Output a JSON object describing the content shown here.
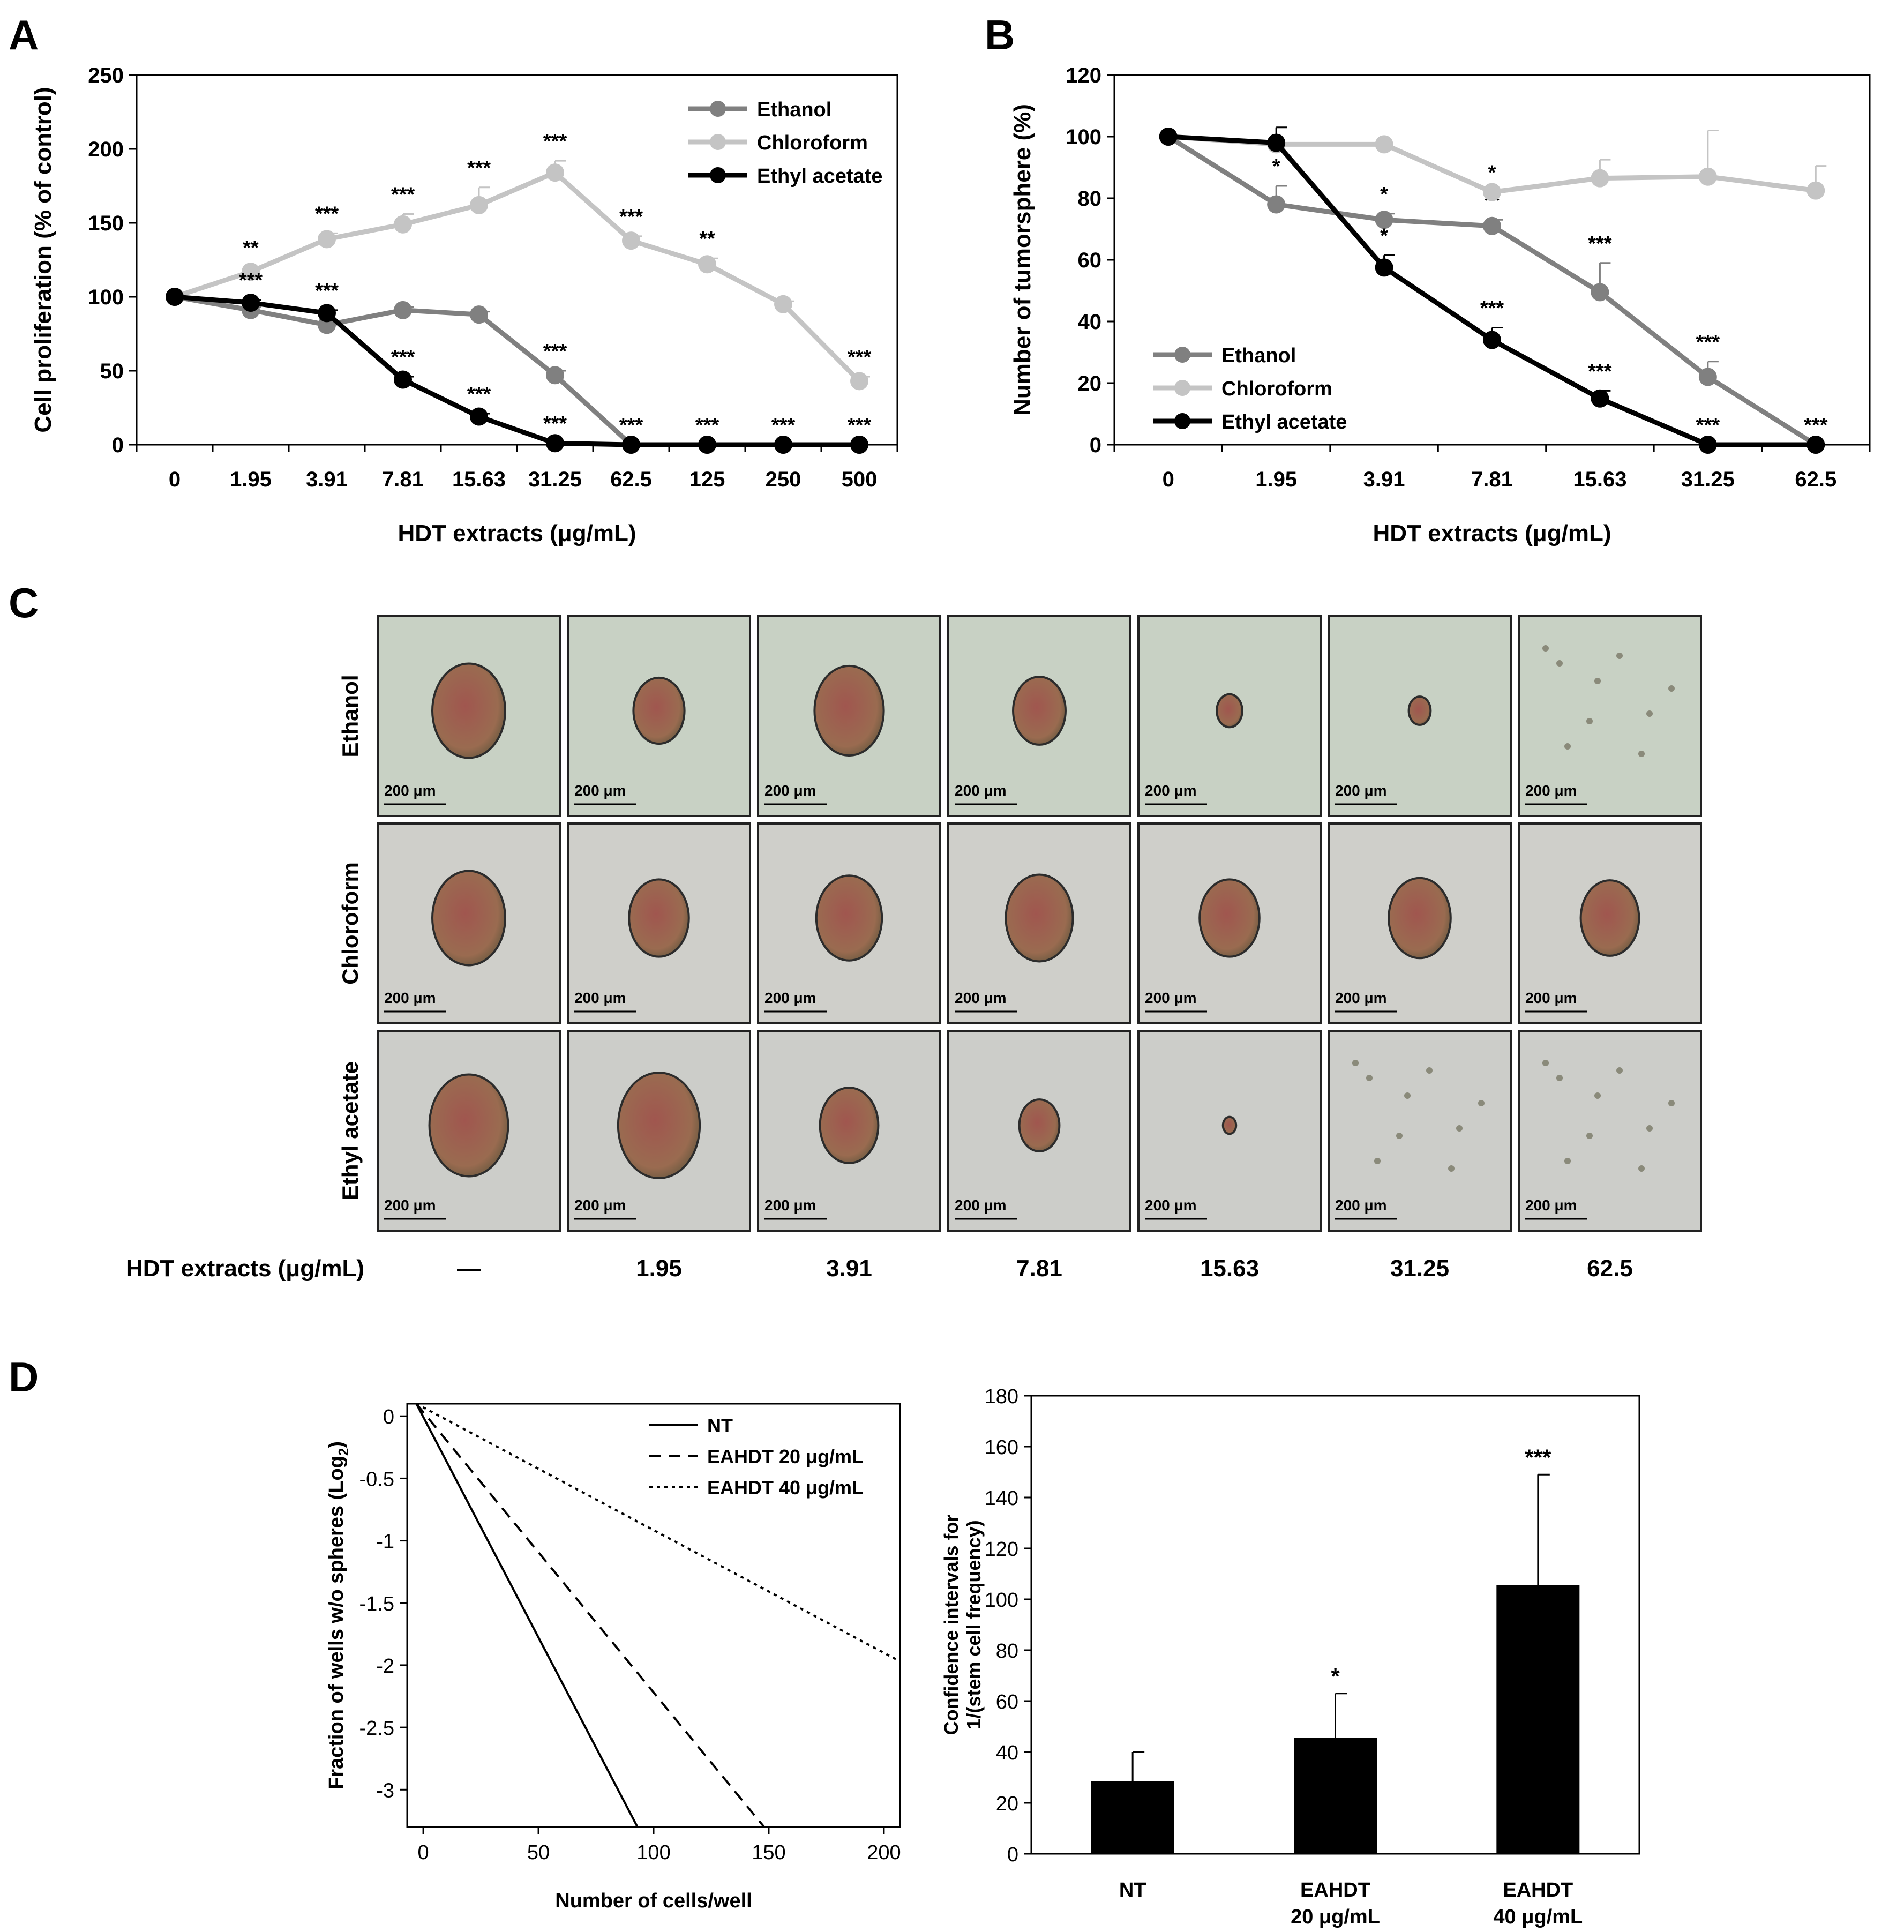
{
  "panels": {
    "a": "A",
    "b": "B",
    "c": "C",
    "d": "D"
  },
  "chart_data": [
    {
      "id": "A",
      "type": "line",
      "categories": [
        "0",
        "1.95",
        "3.91",
        "7.81",
        "15.63",
        "31.25",
        "62.5",
        "125",
        "250",
        "500"
      ],
      "xlabel": "HDT extracts (μg/mL)",
      "ylabel": "Cell proliferation (% of control)",
      "ylim": [
        0,
        250
      ],
      "yticks": [
        0,
        50,
        100,
        150,
        200,
        250
      ],
      "legend_position": "top-right",
      "series": [
        {
          "name": "Ethanol",
          "color": "#808080",
          "values": [
            100,
            91,
            81,
            91,
            88,
            47,
            0,
            0,
            0,
            0
          ],
          "errors": [
            0,
            2,
            2,
            2,
            2,
            3,
            0,
            0,
            0,
            0
          ],
          "labels": [
            "",
            "",
            "",
            "",
            "",
            "***",
            "***",
            "",
            "",
            ""
          ],
          "label_side": "above"
        },
        {
          "name": "Chloroform",
          "color": "#c4c4c4",
          "values": [
            100,
            117,
            139,
            149,
            162,
            184,
            138,
            122,
            95,
            43
          ],
          "errors": [
            0,
            3,
            4,
            7,
            12,
            8,
            3,
            4,
            2,
            3
          ],
          "labels": [
            "",
            "**",
            "***",
            "***",
            "***",
            "***",
            "***",
            "**",
            "",
            "***"
          ],
          "label_side": "above"
        },
        {
          "name": "Ethyl acetate",
          "color": "#000000",
          "values": [
            100,
            96,
            89,
            44,
            19,
            1,
            0,
            0,
            0,
            0
          ],
          "errors": [
            0,
            2,
            2,
            2,
            2,
            0,
            0,
            0,
            0,
            0
          ],
          "labels": [
            "",
            "***",
            "***",
            "***",
            "***",
            "***",
            "",
            "***",
            "***",
            "***"
          ],
          "label_side": "above"
        }
      ]
    },
    {
      "id": "B",
      "type": "line",
      "categories": [
        "0",
        "1.95",
        "3.91",
        "7.81",
        "15.63",
        "31.25",
        "62.5"
      ],
      "xlabel": "HDT extracts (μg/mL)",
      "ylabel": "Number of tumorsphere (%)",
      "ylim": [
        0,
        120
      ],
      "yticks": [
        0,
        20,
        40,
        60,
        80,
        100,
        120
      ],
      "legend_position": "bottom-left",
      "series": [
        {
          "name": "Ethanol",
          "color": "#808080",
          "values": [
            100,
            78,
            73,
            71,
            49.5,
            22,
            0
          ],
          "errors": [
            0,
            6,
            2,
            2,
            9.5,
            5,
            0
          ],
          "labels": [
            "",
            "*",
            "*",
            "**",
            "***",
            "***",
            ""
          ]
        },
        {
          "name": "Chloroform",
          "color": "#c4c4c4",
          "values": [
            100,
            97.5,
            97.5,
            82,
            86.5,
            87,
            82.5
          ],
          "errors": [
            0,
            0,
            0,
            0,
            6,
            15,
            8
          ],
          "labels": [
            "",
            "",
            "",
            "*",
            "",
            "",
            ""
          ]
        },
        {
          "name": "Ethyl acetate",
          "color": "#000000",
          "values": [
            100,
            98,
            57.5,
            34,
            15,
            0,
            0
          ],
          "errors": [
            0,
            5,
            4,
            4,
            2.5,
            0,
            0
          ],
          "labels": [
            "",
            "",
            "*",
            "***",
            "***",
            "***",
            "***"
          ]
        }
      ]
    },
    {
      "id": "D1",
      "type": "line",
      "xlabel": "Number of cells/well",
      "ylabel": "Fraction of wells w/o spheres (Log",
      "ylabel_sub": "2",
      "ylabel_end": ")",
      "xlim": [
        -7,
        207
      ],
      "ylim": [
        -3.3,
        0.1
      ],
      "xticks": [
        0,
        50,
        100,
        150,
        200
      ],
      "yticks": [
        0,
        -0.5,
        -1,
        -1.5,
        -2,
        -2.5,
        -3
      ],
      "ytick_labels": [
        "0",
        "-0.5",
        "-1",
        "-1.5",
        "-2",
        "-2.5",
        "-3"
      ],
      "legend_position": "top-right",
      "series": [
        {
          "name": "NT",
          "dash": "solid",
          "x": [
            -3,
            93
          ],
          "y": [
            0.1,
            -3.3
          ]
        },
        {
          "name": "EAHDT 20 μg/mL",
          "dash": "dashed",
          "x": [
            -3,
            148
          ],
          "y": [
            0.1,
            -3.3
          ]
        },
        {
          "name": "EAHDT 40 μg/mL",
          "dash": "dotted",
          "x": [
            -3,
            207
          ],
          "y": [
            0.1,
            -1.97
          ]
        }
      ]
    },
    {
      "id": "D2",
      "type": "bar",
      "categories": [
        [
          "NT"
        ],
        [
          "EAHDT",
          "20 μg/mL"
        ],
        [
          "EAHDT",
          "40 μg/mL"
        ]
      ],
      "ylabel_lines": [
        "Confidence intervals for",
        "1/(stem cell frequency)"
      ],
      "ylim": [
        0,
        180
      ],
      "yticks": [
        0,
        20,
        40,
        60,
        80,
        100,
        120,
        140,
        160,
        180
      ],
      "values": [
        28.5,
        45.5,
        105.5
      ],
      "errors_upper": [
        40,
        63,
        149
      ],
      "labels": [
        "",
        "*",
        "***"
      ]
    }
  ],
  "micrographs": {
    "rows": [
      "Ethanol",
      "Chloroform",
      "Ethyl acetate"
    ],
    "scale_bar": "200 μm",
    "xlabel": "HDT extracts (μg/mL)",
    "doses": [
      "—",
      "1.95",
      "3.91",
      "7.81",
      "15.63",
      "31.25",
      "62.5"
    ],
    "sphere_sizes": [
      [
        1.0,
        0.7,
        0.95,
        0.72,
        0.35,
        0.3,
        0.0
      ],
      [
        1.0,
        0.82,
        0.9,
        0.92,
        0.82,
        0.85,
        0.8
      ],
      [
        1.08,
        1.12,
        0.8,
        0.55,
        0.18,
        0.0,
        0.0
      ]
    ]
  }
}
